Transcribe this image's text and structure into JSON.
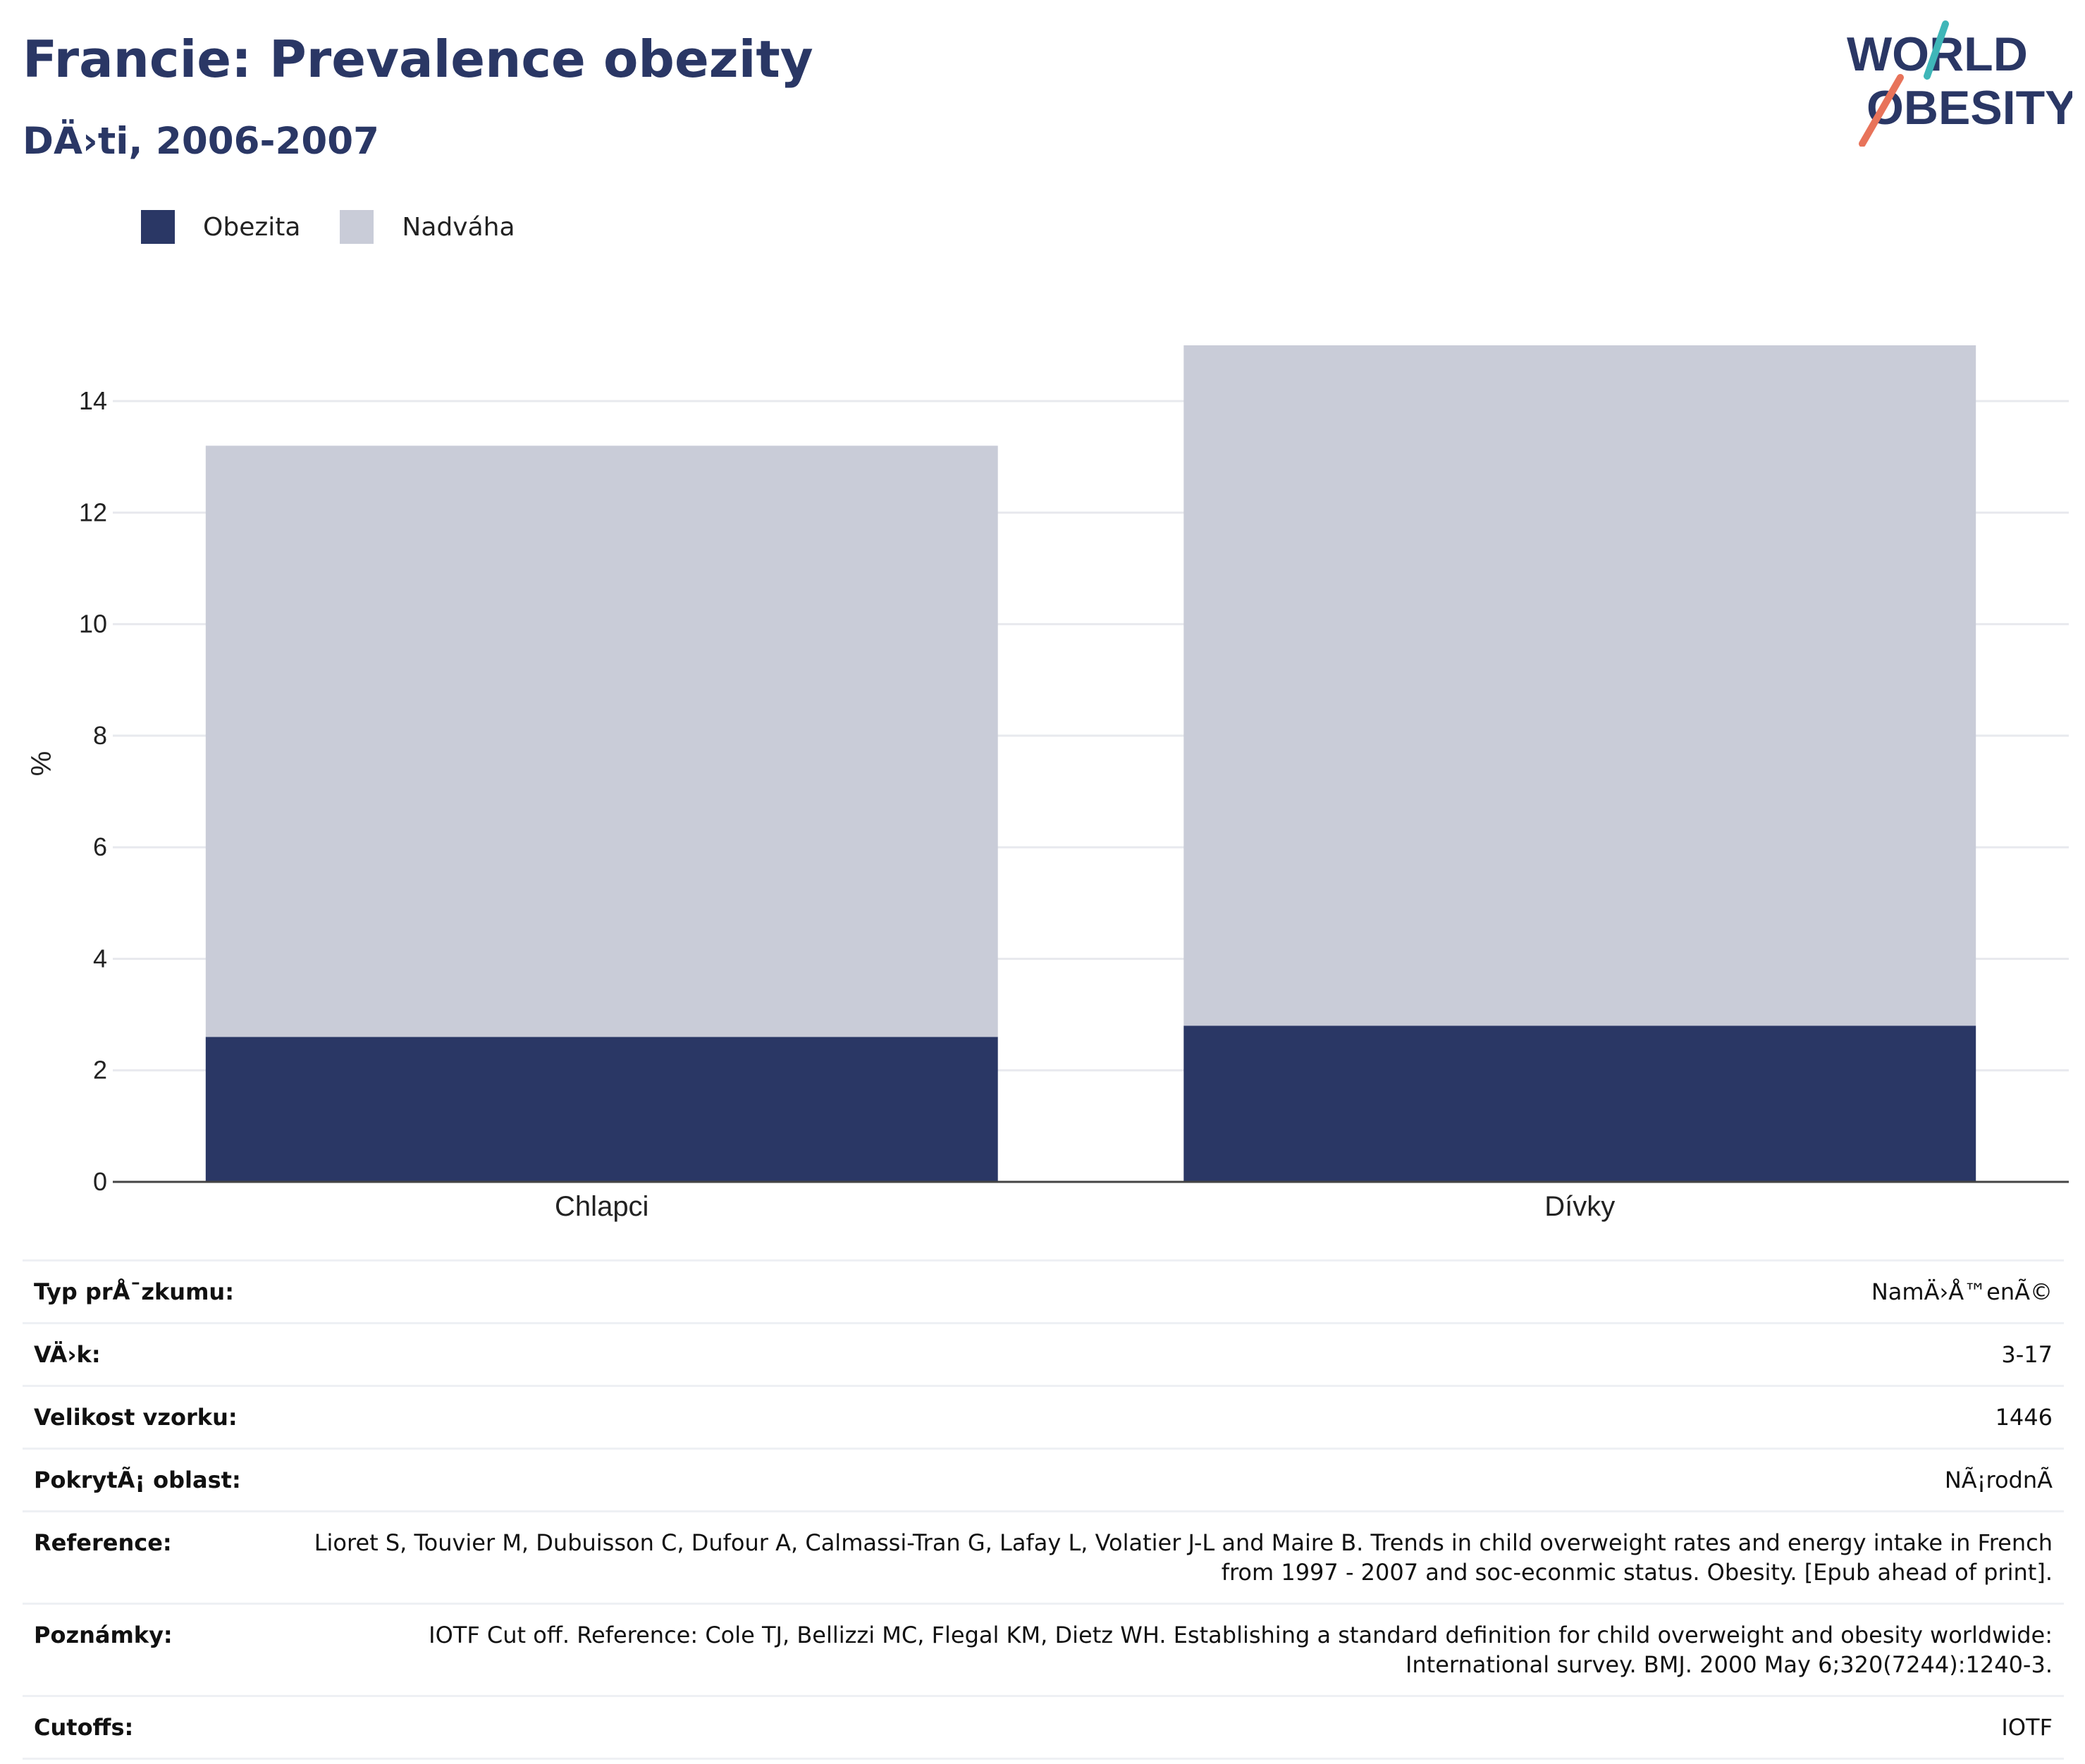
{
  "header": {
    "title": "Francie: Prevalence obezity",
    "subtitle": "DÄ›ti, 2006-2007"
  },
  "logo": {
    "line1": "WORLD",
    "line2": "OBESITY",
    "text_color": "#2a3765",
    "accent_teal": "#3fb6b8",
    "accent_coral": "#e8735a"
  },
  "legend": [
    {
      "label": "Obezita",
      "color": "#2a3765"
    },
    {
      "label": "Nadváha",
      "color": "#c9ccd8"
    }
  ],
  "chart_data": {
    "type": "bar",
    "stacked": true,
    "categories": [
      "Chlapci",
      "Dívky"
    ],
    "series": [
      {
        "name": "Obezita",
        "color": "#2a3765",
        "values": [
          2.6,
          2.8
        ]
      },
      {
        "name": "Nadváha",
        "color": "#c9ccd8",
        "values": [
          10.6,
          12.2
        ]
      }
    ],
    "ylabel": "%",
    "ylim": [
      0,
      15
    ],
    "yticks": [
      "0",
      "2",
      "4",
      "6",
      "8",
      "10",
      "12",
      "14"
    ],
    "grid": true,
    "legend_position": "top-left"
  },
  "info": [
    {
      "key": "Typ prÅ¯zkumu:",
      "value": "NamÄ›Å™enÃ©"
    },
    {
      "key": "VÄ›k:",
      "value": "3-17"
    },
    {
      "key": "Velikost vzorku:",
      "value": "1446"
    },
    {
      "key": "PokrytÃ¡ oblast:",
      "value": "NÃ¡rodnÃ"
    },
    {
      "key": "Reference:",
      "value": "Lioret S, Touvier M, Dubuisson C, Dufour A, Calmassi-Tran G, Lafay L, Volatier J-L and Maire B. Trends in child overweight rates and energy intake in French from 1997 - 2007 and soc-econmic status. Obesity. [Epub ahead of print]."
    },
    {
      "key": "Poznámky:",
      "value": "IOTF Cut off. Reference: Cole TJ, Bellizzi MC, Flegal KM, Dietz WH. Establishing a standard definition for child overweight and obesity worldwide: International survey. BMJ. 2000 May 6;320(7244):1240-3."
    },
    {
      "key": "Cutoffs:",
      "value": "IOTF"
    }
  ]
}
